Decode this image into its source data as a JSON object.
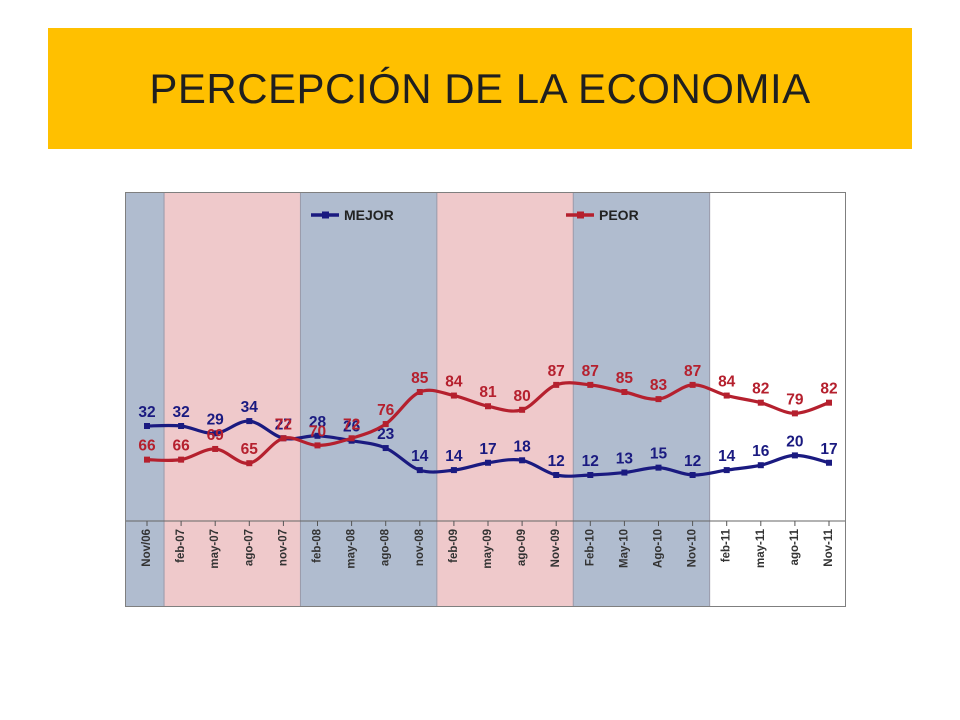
{
  "title": "PERCEPCIÓN DE LA ECONOMIA",
  "colors": {
    "banner": "#ffc000",
    "peor": "#b5202e",
    "mejor": "#1a1a80",
    "band_blue": "#b0bccf",
    "band_pink": "#efc9cb",
    "band_white": "#ffffff"
  },
  "chart_data": {
    "type": "line",
    "categories": [
      "Nov/06",
      "feb-07",
      "may-07",
      "ago-07",
      "nov-07",
      "feb-08",
      "may-08",
      "ago-08",
      "nov-08",
      "feb-09",
      "may-09",
      "ago-09",
      "Nov-09",
      "Feb-10",
      "May-10",
      "Ago-10",
      "Nov-10",
      "feb-11",
      "may-11",
      "ago-11",
      "Nov-11"
    ],
    "series": [
      {
        "name": "MEJOR",
        "color": "#1a1a80",
        "values": [
          32,
          32,
          29,
          34,
          27,
          28,
          26,
          23,
          14,
          14,
          17,
          18,
          12,
          12,
          13,
          15,
          12,
          14,
          16,
          20,
          17
        ]
      },
      {
        "name": "PEOR",
        "color": "#b5202e",
        "values": [
          66,
          66,
          69,
          65,
          72,
          70,
          72,
          76,
          85,
          84,
          81,
          80,
          87,
          87,
          85,
          83,
          87,
          84,
          82,
          79,
          82
        ]
      }
    ],
    "bands": [
      {
        "from": 0,
        "to": 0,
        "color": "#b0bccf"
      },
      {
        "from": 1,
        "to": 4,
        "color": "#efc9cb"
      },
      {
        "from": 5,
        "to": 8,
        "color": "#b0bccf"
      },
      {
        "from": 9,
        "to": 12,
        "color": "#efc9cb"
      },
      {
        "from": 13,
        "to": 16,
        "color": "#b0bccf"
      },
      {
        "from": 17,
        "to": 20,
        "color": "#ffffff"
      }
    ],
    "legend_position": "top",
    "grid": false
  }
}
